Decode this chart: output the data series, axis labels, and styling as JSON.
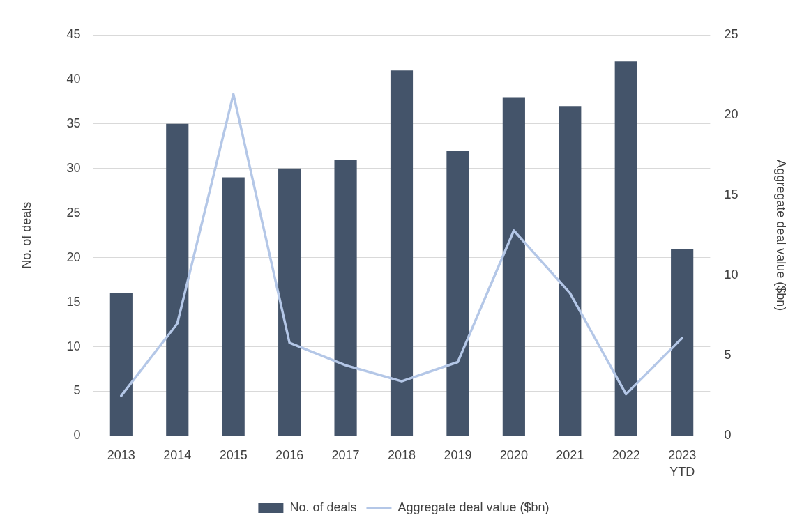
{
  "chart_data": {
    "type": "bar",
    "categories": [
      "2013",
      "2014",
      "2015",
      "2016",
      "2017",
      "2018",
      "2019",
      "2020",
      "2021",
      "2022",
      "2023 YTD"
    ],
    "series": [
      {
        "name": "No. of deals",
        "color": "#44546a",
        "values": [
          16,
          35,
          29,
          30,
          31,
          41,
          32,
          38,
          37,
          42,
          21
        ]
      },
      {
        "name": "Aggregate deal value ($bn)",
        "type": "line",
        "axis": "y2",
        "color": "#b4c7e7",
        "values": [
          2.5,
          7.0,
          21.3,
          5.8,
          4.4,
          3.4,
          4.6,
          12.8,
          8.9,
          2.6,
          6.1
        ]
      }
    ],
    "ylabel": "No. of deals",
    "y2label": "Aggregate deal value ($bn)",
    "ylim": [
      0,
      45
    ],
    "yticks": [
      0,
      5,
      10,
      15,
      20,
      25,
      30,
      35,
      40,
      45
    ],
    "y2lim": [
      0,
      25
    ],
    "y2ticks": [
      0,
      5,
      10,
      15,
      20,
      25
    ],
    "grid": "y",
    "legend": "bottom",
    "marker": "none",
    "line_style": "solid"
  }
}
